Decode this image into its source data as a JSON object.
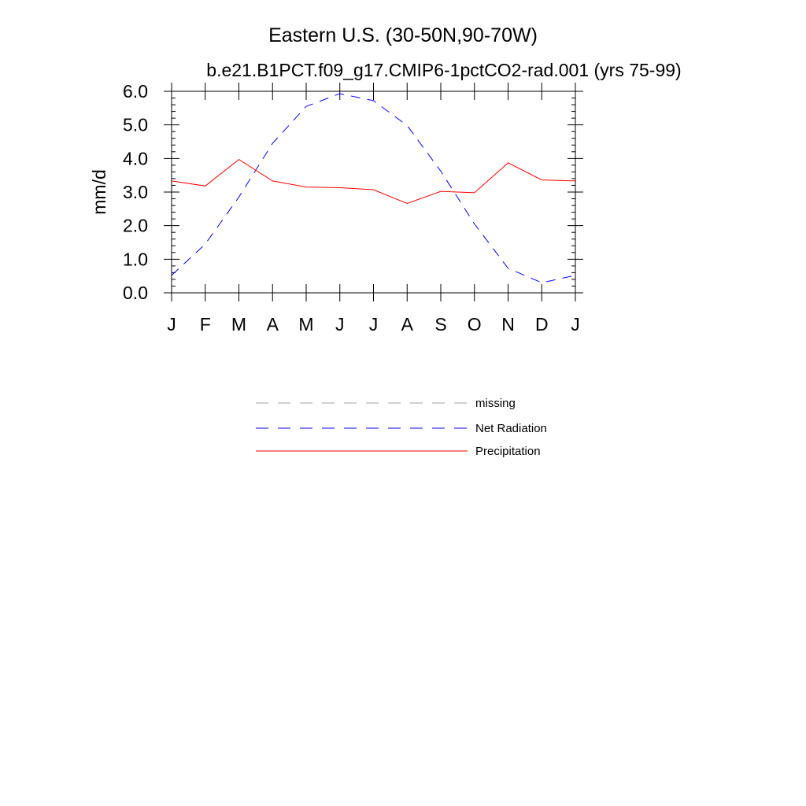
{
  "chart_data": {
    "type": "line",
    "title": "Eastern U.S. (30-50N,90-70W)",
    "subtitle": "b.e21.B1PCT.f09_g17.CMIP6-1pctCO2-rad.001 (yrs 75-99)",
    "xlabel": "",
    "ylabel": "mm/d",
    "ylim": [
      0,
      6
    ],
    "yticks": [
      "0.0",
      "1.0",
      "2.0",
      "3.0",
      "4.0",
      "5.0",
      "6.0"
    ],
    "categories": [
      "J",
      "F",
      "M",
      "A",
      "M",
      "J",
      "J",
      "A",
      "S",
      "O",
      "N",
      "D",
      "J"
    ],
    "series": [
      {
        "name": "Net Radiation",
        "color": "#0000ff",
        "dash": "dashed",
        "values": [
          0.52,
          1.45,
          2.85,
          4.45,
          5.55,
          5.93,
          5.72,
          4.98,
          3.62,
          2.05,
          0.73,
          0.3,
          0.52
        ]
      },
      {
        "name": "Precipitation",
        "color": "#ff0000",
        "dash": "solid",
        "values": [
          3.33,
          3.18,
          3.97,
          3.33,
          3.15,
          3.13,
          3.07,
          2.66,
          3.02,
          2.98,
          3.87,
          3.36,
          3.33
        ]
      }
    ],
    "legend": {
      "placement": "bottom",
      "entries": [
        {
          "name": "missing",
          "color": "#a0a0a0",
          "dash": "dashed"
        },
        {
          "name": "Net Radiation",
          "color": "#0000ff",
          "dash": "dashed"
        },
        {
          "name": "Precipitation",
          "color": "#ff0000",
          "dash": "solid"
        }
      ]
    },
    "grid": false
  }
}
